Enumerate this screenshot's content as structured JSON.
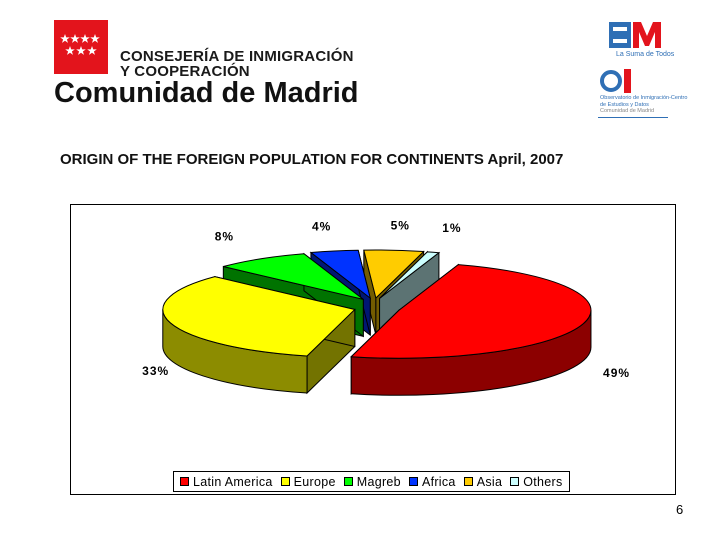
{
  "header": {
    "org_line1": "CONSEJERÍA DE INMIGRACIÓN",
    "org_line2": "Y COOPERACIÓN",
    "org_title": "Comunidad de Madrid",
    "logo_right_top": "La Suma de Todos",
    "logo_right_text": [
      "Observatorio de Inmigración-Centro",
      "de Estudios y Datos"
    ],
    "logo_right_subtext": "Comunidad de Madrid"
  },
  "slide": {
    "title": "ORIGIN OF THE FOREIGN POPULATION FOR CONTINENTS April, 2007",
    "page_number": "6"
  },
  "chart_data": {
    "type": "pie",
    "title": "ORIGIN OF THE FOREIGN POPULATION FOR CONTINENTS April, 2007",
    "categories": [
      "Latin America",
      "Europe",
      "Magreb",
      "Africa",
      "Asia",
      "Others"
    ],
    "values": [
      49,
      33,
      8,
      4,
      5,
      1
    ],
    "labels": [
      "49%",
      "33%",
      "8%",
      "4%",
      "5%",
      "1%"
    ],
    "colors": [
      "#ff0000",
      "#ffff00",
      "#00ff00",
      "#0033ff",
      "#ffcc00",
      "#ccffff"
    ],
    "three_d": true,
    "exploded": true,
    "legend_position": "bottom"
  }
}
